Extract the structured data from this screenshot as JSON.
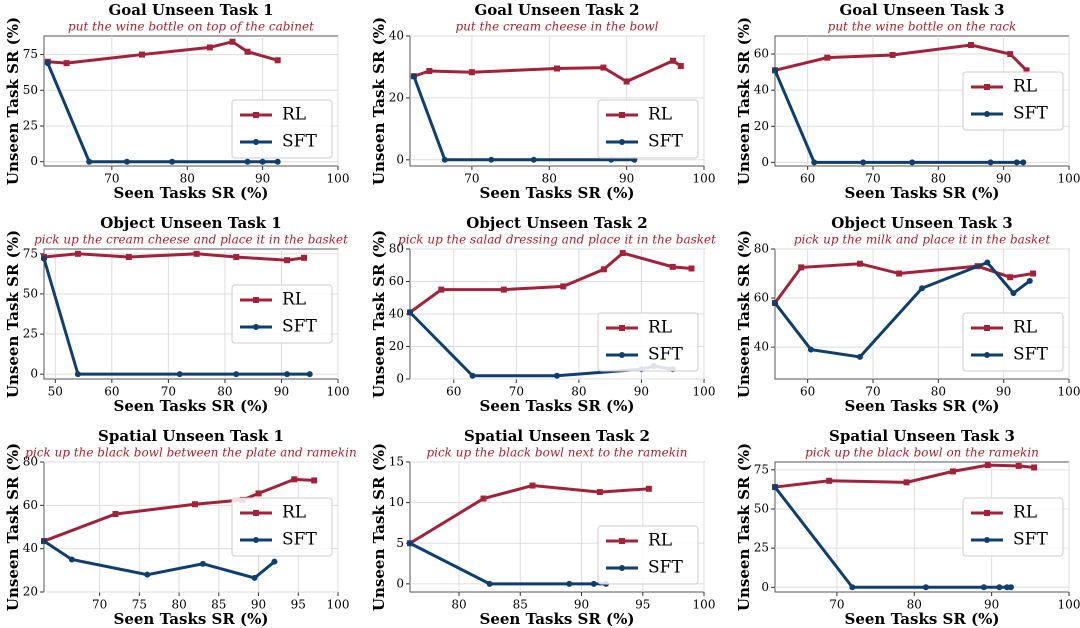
{
  "chart_data": [
    {
      "type": "line",
      "title": "Goal Unseen Task 1",
      "subtitle": "put the wine bottle on top of the cabinet",
      "xlabel": "Seen Tasks SR (%)",
      "ylabel": "Unseen Task SR (%)",
      "xlim": [
        61,
        100
      ],
      "xticks": [
        70,
        80,
        90,
        100
      ],
      "ylim": [
        -3,
        88
      ],
      "yticks": [
        0,
        25,
        50,
        75
      ],
      "grid": true,
      "legend": "lower right",
      "series": [
        {
          "name": "RL",
          "color": "#a3223a",
          "marker": "square",
          "x": [
            61.5,
            64,
            74,
            83,
            86,
            88,
            92
          ],
          "values": [
            70,
            69,
            75,
            80,
            84,
            77,
            71
          ]
        },
        {
          "name": "SFT",
          "color": "#0f3f6e",
          "marker": "circle",
          "x": [
            61.5,
            67,
            72,
            78,
            88,
            90,
            92
          ],
          "values": [
            69,
            0,
            0,
            0,
            0,
            0,
            0
          ]
        }
      ]
    },
    {
      "type": "line",
      "title": "Goal Unseen Task 2",
      "subtitle": "put the cream cheese in the bowl",
      "xlabel": "Seen Tasks SR (%)",
      "ylabel": "Unseen Task SR (%)",
      "xlim": [
        62,
        100
      ],
      "xticks": [
        70,
        80,
        90,
        100
      ],
      "ylim": [
        -2,
        40
      ],
      "yticks": [
        0,
        20,
        40
      ],
      "grid": true,
      "legend": "lower right",
      "series": [
        {
          "name": "RL",
          "color": "#a3223a",
          "marker": "square",
          "x": [
            62.5,
            64.5,
            70,
            81,
            87,
            90,
            96,
            97
          ],
          "values": [
            27,
            28.7,
            28.3,
            29.5,
            29.8,
            25.3,
            32,
            30.3
          ]
        },
        {
          "name": "SFT",
          "color": "#0f3f6e",
          "marker": "circle",
          "x": [
            62.5,
            66.5,
            72.5,
            78,
            88,
            91
          ],
          "values": [
            27,
            0,
            0,
            0,
            0,
            0
          ]
        }
      ]
    },
    {
      "type": "line",
      "title": "Goal Unseen Task 3",
      "subtitle": "put the wine bottle on the rack",
      "xlabel": "Seen Tasks SR (%)",
      "ylabel": "Unseen Task SR (%)",
      "xlim": [
        55,
        100
      ],
      "xticks": [
        60,
        70,
        80,
        90,
        100
      ],
      "ylim": [
        -2,
        70
      ],
      "yticks": [
        0,
        20,
        40,
        60
      ],
      "grid": true,
      "legend": "center right",
      "series": [
        {
          "name": "RL",
          "color": "#a3223a",
          "marker": "square",
          "x": [
            55,
            63,
            73,
            85,
            91,
            93.5
          ],
          "values": [
            51,
            58,
            59.5,
            65,
            60,
            51
          ]
        },
        {
          "name": "SFT",
          "color": "#0f3f6e",
          "marker": "circle",
          "x": [
            55,
            61,
            68.5,
            76,
            88,
            92,
            93
          ],
          "values": [
            51,
            0,
            0,
            0,
            0,
            0,
            0
          ]
        }
      ]
    },
    {
      "type": "line",
      "title": "Object Unseen Task 1",
      "subtitle": "pick up the cream cheese and place it in the basket",
      "xlabel": "Seen Tasks SR (%)",
      "ylabel": "Unseen Task SR (%)",
      "xlim": [
        48,
        100
      ],
      "xticks": [
        50,
        60,
        70,
        80,
        90,
        100
      ],
      "ylim": [
        -3,
        78
      ],
      "yticks": [
        0,
        25,
        50,
        75
      ],
      "grid": true,
      "legend": "center right",
      "series": [
        {
          "name": "RL",
          "color": "#a3223a",
          "marker": "square",
          "x": [
            48,
            54,
            63,
            75,
            82,
            91,
            94
          ],
          "values": [
            73,
            75,
            73,
            75,
            73,
            71,
            72.5
          ]
        },
        {
          "name": "SFT",
          "color": "#0f3f6e",
          "marker": "circle",
          "x": [
            48,
            54,
            72,
            82,
            91,
            95
          ],
          "values": [
            72,
            0,
            0,
            0,
            0,
            0
          ]
        }
      ]
    },
    {
      "type": "line",
      "title": "Object Unseen Task 2",
      "subtitle": "pick up the salad dressing and place it in the basket",
      "xlabel": "Seen Tasks SR (%)",
      "ylabel": "Unseen Task SR (%)",
      "xlim": [
        53,
        100
      ],
      "xticks": [
        60,
        70,
        80,
        90,
        100
      ],
      "ylim": [
        0,
        80
      ],
      "yticks": [
        0,
        20,
        40,
        60,
        80
      ],
      "grid": true,
      "legend": "lower right",
      "series": [
        {
          "name": "RL",
          "color": "#a3223a",
          "marker": "square",
          "x": [
            53,
            58,
            68,
            77.5,
            84,
            87,
            95,
            98
          ],
          "values": [
            41,
            55,
            55,
            57,
            67.5,
            77.5,
            69,
            68
          ]
        },
        {
          "name": "SFT",
          "color": "#0f3f6e",
          "marker": "circle",
          "x": [
            53,
            63,
            76.5,
            90,
            92,
            95
          ],
          "values": [
            41,
            2,
            2,
            6,
            8,
            6
          ]
        }
      ]
    },
    {
      "type": "line",
      "title": "Object Unseen Task 3",
      "subtitle": "pick up the milk and place it in the basket",
      "xlabel": "Seen Tasks SR (%)",
      "ylabel": "Unseen Task SR (%)",
      "xlim": [
        55,
        100
      ],
      "xticks": [
        60,
        70,
        80,
        90,
        100
      ],
      "ylim": [
        27,
        80
      ],
      "yticks": [
        40,
        60,
        80
      ],
      "grid": true,
      "legend": "lower right",
      "series": [
        {
          "name": "RL",
          "color": "#a3223a",
          "marker": "square",
          "x": [
            55,
            59,
            68,
            74,
            86,
            91,
            94.5
          ],
          "values": [
            58,
            72.5,
            74,
            70,
            73,
            68.5,
            70
          ]
        },
        {
          "name": "SFT",
          "color": "#0f3f6e",
          "marker": "circle",
          "x": [
            55,
            60.5,
            68,
            77.5,
            87.5,
            91.5,
            94
          ],
          "values": [
            58,
            39,
            36,
            64,
            74.5,
            62,
            67
          ]
        }
      ]
    },
    {
      "type": "line",
      "title": "Spatial Unseen Task 1",
      "subtitle": "pick up the black bowl between the plate and ramekin",
      "xlabel": "Seen Tasks SR (%)",
      "ylabel": "Unseen Task SR (%)",
      "xlim": [
        63,
        100
      ],
      "xticks": [
        70,
        75,
        80,
        85,
        90,
        95,
        100
      ],
      "ylim": [
        20,
        80
      ],
      "yticks": [
        20,
        40,
        60,
        80
      ],
      "grid": true,
      "legend": "center right",
      "series": [
        {
          "name": "RL",
          "color": "#a3223a",
          "marker": "square",
          "x": [
            63,
            72,
            82,
            88,
            90,
            94.5,
            97
          ],
          "values": [
            43.5,
            56,
            60.5,
            62.5,
            65.5,
            72,
            71.5
          ]
        },
        {
          "name": "SFT",
          "color": "#0f3f6e",
          "marker": "circle",
          "x": [
            63,
            66.5,
            76,
            83,
            89.5,
            92
          ],
          "values": [
            43.5,
            35,
            28,
            33,
            26.5,
            34
          ]
        }
      ]
    },
    {
      "type": "line",
      "title": "Spatial Unseen Task 2",
      "subtitle": "pick up the black bowl next to the ramekin",
      "xlabel": "Seen Tasks SR (%)",
      "ylabel": "Unseen Task SR (%)",
      "xlim": [
        76,
        100
      ],
      "xticks": [
        80,
        85,
        90,
        95,
        100
      ],
      "ylim": [
        -1,
        15
      ],
      "yticks": [
        0,
        5,
        10,
        15
      ],
      "grid": true,
      "legend": "lower right",
      "series": [
        {
          "name": "RL",
          "color": "#a3223a",
          "marker": "square",
          "x": [
            76,
            82,
            86,
            91.5,
            95.5
          ],
          "values": [
            5,
            10.5,
            12.1,
            11.3,
            11.7
          ]
        },
        {
          "name": "SFT",
          "color": "#0f3f6e",
          "marker": "circle",
          "x": [
            76,
            82.5,
            89,
            91,
            92
          ],
          "values": [
            5,
            0,
            0,
            0,
            0
          ]
        }
      ]
    },
    {
      "type": "line",
      "title": "Spatial Unseen Task 3",
      "subtitle": "pick up the black bowl on the ramekin",
      "xlabel": "Seen Tasks SR (%)",
      "ylabel": "Unseen Task SR (%)",
      "xlim": [
        62,
        100
      ],
      "xticks": [
        70,
        80,
        90,
        100
      ],
      "ylim": [
        -3,
        80
      ],
      "yticks": [
        0,
        25,
        50,
        75
      ],
      "grid": true,
      "legend": "center right",
      "series": [
        {
          "name": "RL",
          "color": "#a3223a",
          "marker": "square",
          "x": [
            62,
            69,
            79,
            85,
            89.5,
            93.5,
            95.5
          ],
          "values": [
            64,
            68,
            67,
            74,
            78,
            77.5,
            76.5
          ]
        },
        {
          "name": "SFT",
          "color": "#0f3f6e",
          "marker": "circle",
          "x": [
            62,
            72,
            81.5,
            89,
            91,
            92,
            92.5
          ],
          "values": [
            64,
            0,
            0,
            0,
            0,
            0,
            0
          ]
        }
      ]
    }
  ]
}
